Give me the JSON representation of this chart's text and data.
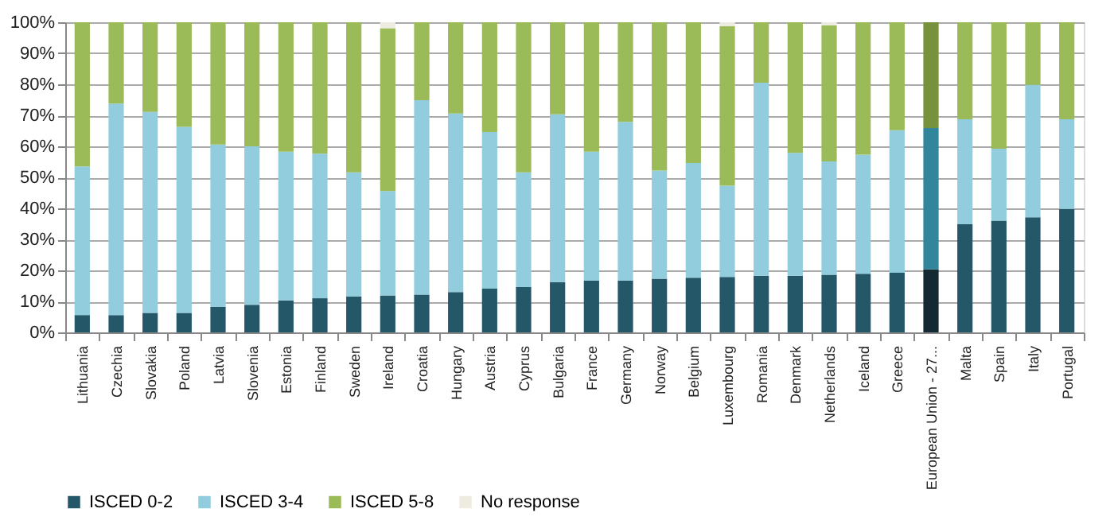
{
  "chart_data": {
    "type": "bar",
    "stacked": true,
    "categories": [
      "Lithuania",
      "Czechia",
      "Slovakia",
      "Poland",
      "Latvia",
      "Slovenia",
      "Estonia",
      "Finland",
      "Sweden",
      "Ireland",
      "Croatia",
      "Hungary",
      "Austria",
      "Cyprus",
      "Bulgaria",
      "France",
      "Germany",
      "Norway",
      "Belgium",
      "Luxembourg",
      "Romania",
      "Denmark",
      "Netherlands",
      "Iceland",
      "Greece",
      "European Union - 27...",
      "Malta",
      "Spain",
      "Italy",
      "Portugal"
    ],
    "series": [
      {
        "name": "ISCED 0-2",
        "color": "#245868",
        "colors": [
          "#245868",
          "#245868",
          "#245868",
          "#245868",
          "#245868",
          "#245868",
          "#245868",
          "#245868",
          "#245868",
          "#245868",
          "#245868",
          "#245868",
          "#245868",
          "#245868",
          "#245868",
          "#245868",
          "#245868",
          "#245868",
          "#245868",
          "#245868",
          "#245868",
          "#245868",
          "#245868",
          "#245868",
          "#245868",
          "#132a33",
          "#245868",
          "#245868",
          "#245868",
          "#245868"
        ],
        "values": [
          5.6,
          5.6,
          6.3,
          6.3,
          8.3,
          8.9,
          10.3,
          11.0,
          11.6,
          11.9,
          12.2,
          13.0,
          14.1,
          14.6,
          16.2,
          16.7,
          16.7,
          17.3,
          17.6,
          17.9,
          18.3,
          18.3,
          18.6,
          18.9,
          19.2,
          20.3,
          34.9,
          36.0,
          37.1,
          39.8
        ]
      },
      {
        "name": "ISCED 3-4",
        "color": "#92cddd",
        "colors": [
          "#92cddd",
          "#92cddd",
          "#92cddd",
          "#92cddd",
          "#92cddd",
          "#92cddd",
          "#92cddd",
          "#92cddd",
          "#92cddd",
          "#92cddd",
          "#92cddd",
          "#92cddd",
          "#92cddd",
          "#92cddd",
          "#92cddd",
          "#92cddd",
          "#92cddd",
          "#92cddd",
          "#92cddd",
          "#92cddd",
          "#92cddd",
          "#92cddd",
          "#92cddd",
          "#92cddd",
          "#92cddd",
          "#31869b",
          "#92cddd",
          "#92cddd",
          "#92cddd",
          "#92cddd"
        ],
        "values": [
          47.9,
          68.2,
          64.8,
          60.0,
          52.3,
          51.1,
          48.0,
          46.6,
          40.0,
          33.7,
          62.7,
          57.6,
          50.5,
          37.0,
          54.1,
          41.6,
          51.2,
          34.9,
          37.0,
          29.4,
          62.2,
          39.6,
          36.5,
          38.4,
          46.0,
          45.6,
          33.8,
          23.2,
          42.7,
          28.9
        ]
      },
      {
        "name": "ISCED 5-8",
        "color": "#9bbb59",
        "colors": [
          "#9bbb59",
          "#9bbb59",
          "#9bbb59",
          "#9bbb59",
          "#9bbb59",
          "#9bbb59",
          "#9bbb59",
          "#9bbb59",
          "#9bbb59",
          "#9bbb59",
          "#9bbb59",
          "#9bbb59",
          "#9bbb59",
          "#9bbb59",
          "#9bbb59",
          "#9bbb59",
          "#9bbb59",
          "#9bbb59",
          "#9bbb59",
          "#9bbb59",
          "#9bbb59",
          "#9bbb59",
          "#9bbb59",
          "#9bbb59",
          "#9bbb59",
          "#76923c",
          "#9bbb59",
          "#9bbb59",
          "#9bbb59",
          "#9bbb59"
        ],
        "values": [
          46.5,
          26.2,
          28.9,
          33.7,
          39.4,
          40.0,
          41.7,
          42.4,
          48.4,
          52.5,
          25.1,
          29.4,
          35.4,
          48.4,
          29.7,
          41.7,
          32.1,
          47.8,
          45.4,
          51.4,
          19.5,
          42.1,
          43.9,
          42.7,
          34.8,
          34.1,
          31.3,
          40.8,
          20.2,
          31.3
        ]
      },
      {
        "name": "No response",
        "color": "#eeece1",
        "values": [
          0,
          0,
          0,
          0,
          0,
          0,
          0,
          0,
          0,
          1.9,
          0,
          0,
          0,
          0,
          0,
          0,
          0,
          0,
          0,
          1.3,
          0,
          0,
          1.0,
          0,
          0,
          0,
          0,
          0,
          0,
          0
        ]
      }
    ],
    "ylim": [
      0,
      100
    ],
    "yticks": [
      {
        "value": 0,
        "label": "0%"
      },
      {
        "value": 10,
        "label": "10%"
      },
      {
        "value": 20,
        "label": "20%"
      },
      {
        "value": 30,
        "label": "30%"
      },
      {
        "value": 40,
        "label": "40%"
      },
      {
        "value": 50,
        "label": "50%"
      },
      {
        "value": 60,
        "label": "60%"
      },
      {
        "value": 70,
        "label": "70%"
      },
      {
        "value": 80,
        "label": "80%"
      },
      {
        "value": 90,
        "label": "90%"
      },
      {
        "value": 100,
        "label": "100%"
      }
    ],
    "grid": "y",
    "legend": "bottom"
  }
}
